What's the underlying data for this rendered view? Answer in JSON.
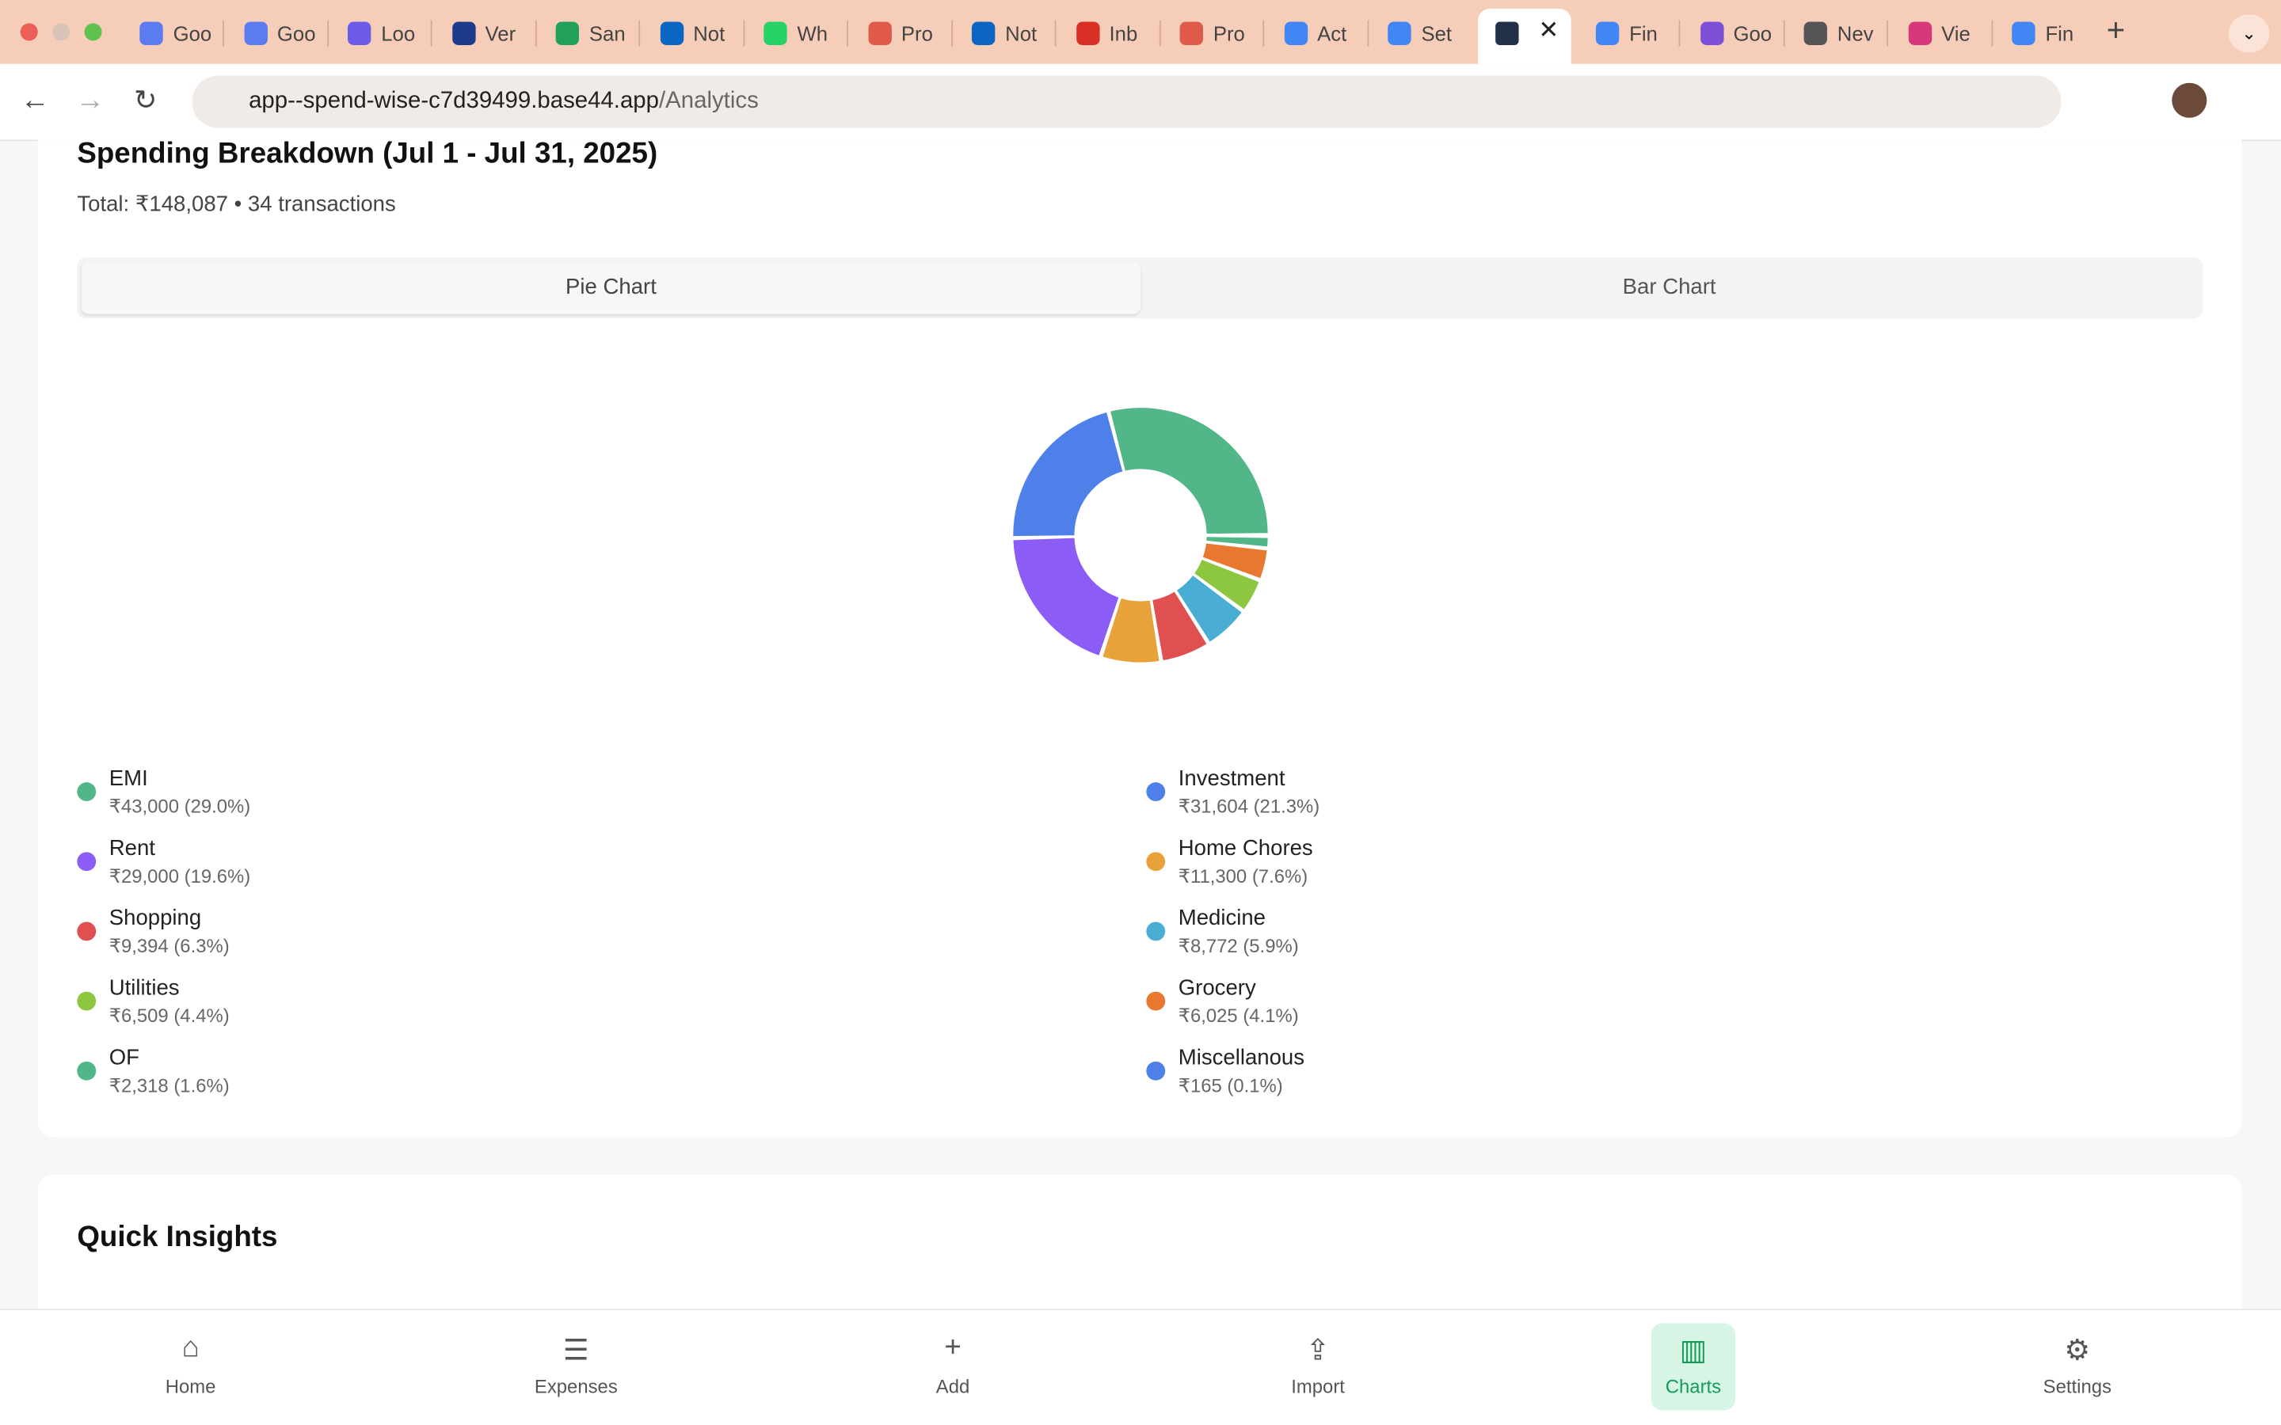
{
  "browser": {
    "tabs": [
      {
        "label": "Goo"
      },
      {
        "label": "Goo"
      },
      {
        "label": "Loo"
      },
      {
        "label": "Ver"
      },
      {
        "label": "San"
      },
      {
        "label": "Not"
      },
      {
        "label": "Wh"
      },
      {
        "label": "Pro"
      },
      {
        "label": "Not"
      },
      {
        "label": "Inb"
      },
      {
        "label": "Pro"
      },
      {
        "label": "Act"
      },
      {
        "label": "Set"
      },
      {
        "active": true
      },
      {
        "label": "Fin"
      },
      {
        "label": "Goo"
      },
      {
        "label": "Nev"
      },
      {
        "label": "Vie"
      },
      {
        "label": "Fin"
      }
    ],
    "url_host": "app--spend-wise-c7d39499.base44.app",
    "url_path": "/Analytics"
  },
  "card": {
    "title": "Spending Breakdown (Jul 1 - Jul 31, 2025)",
    "subtitle": "Total: ₹148,087 • 34 transactions",
    "tabs": [
      "Pie Chart",
      "Bar Chart"
    ]
  },
  "chart_data": {
    "type": "pie",
    "donut": true,
    "categories": [
      "EMI",
      "Investment",
      "Rent",
      "Home Chores",
      "Shopping",
      "Medicine",
      "Utilities",
      "Grocery",
      "OF",
      "Miscellanous"
    ],
    "values": [
      43000,
      31604,
      29000,
      11300,
      9394,
      8772,
      6509,
      6025,
      2318,
      165
    ],
    "value_labels": [
      "₹43,000 (29.0%)",
      "₹31,604 (21.3%)",
      "₹29,000 (19.6%)",
      "₹11,300 (7.6%)",
      "₹9,394 (6.3%)",
      "₹8,772 (5.9%)",
      "₹6,509 (4.4%)",
      "₹6,025 (4.1%)",
      "₹2,318 (1.6%)",
      "₹165 (0.1%)"
    ],
    "colors": [
      "#52b788",
      "#4f80ea",
      "#8b5cf6",
      "#e8a23a",
      "#e05050",
      "#4aaed4",
      "#8dc63f",
      "#e8772f",
      "#52b788",
      "#4f80ea"
    ]
  },
  "insights": {
    "title": "Quick Insights"
  },
  "nav": {
    "items": [
      "Home",
      "Expenses",
      "Add",
      "Import",
      "Charts",
      "Settings"
    ],
    "active": 4
  }
}
